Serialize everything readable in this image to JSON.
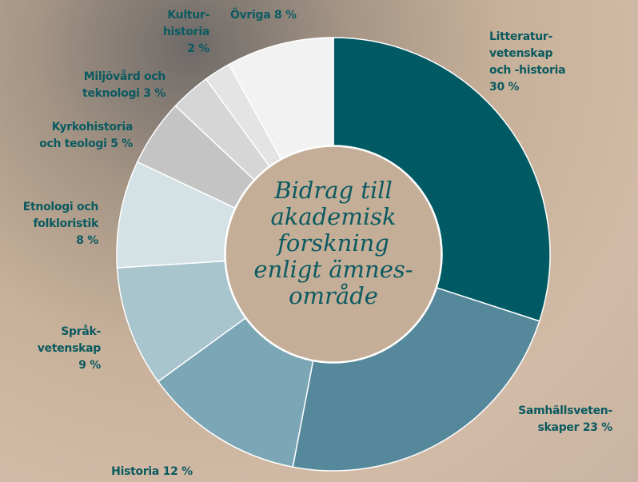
{
  "chart_data": {
    "type": "donut",
    "title": "Bidrag till\nakademisk\nforskning\nenligt ämnes-\nområde",
    "categories": [
      "Litteratur-\nvetenskap\noch -historia",
      "Samhällsveten-\nskaper",
      "Historia",
      "Språk-\nvetenskap",
      "Etnologi och\nfolkloristik",
      "Kyrkohistoria\noch teologi",
      "Miljövård och\nteknologi",
      "Kultur-\nhistoria",
      "Övriga"
    ],
    "values": [
      30,
      23,
      12,
      9,
      8,
      5,
      3,
      2,
      8
    ],
    "value_labels": [
      "30 %",
      "23 %",
      "12 %",
      "9 %",
      "8 %",
      "5 %",
      "3 %",
      "2 %",
      "8 %"
    ],
    "colors": [
      "#005a64",
      "#55889a",
      "#7aa6b5",
      "#a8c4cd",
      "#d4e2e6",
      "#c4c4c4",
      "#d6d6d6",
      "#e4e4e4",
      "#f2f2f2"
    ]
  }
}
